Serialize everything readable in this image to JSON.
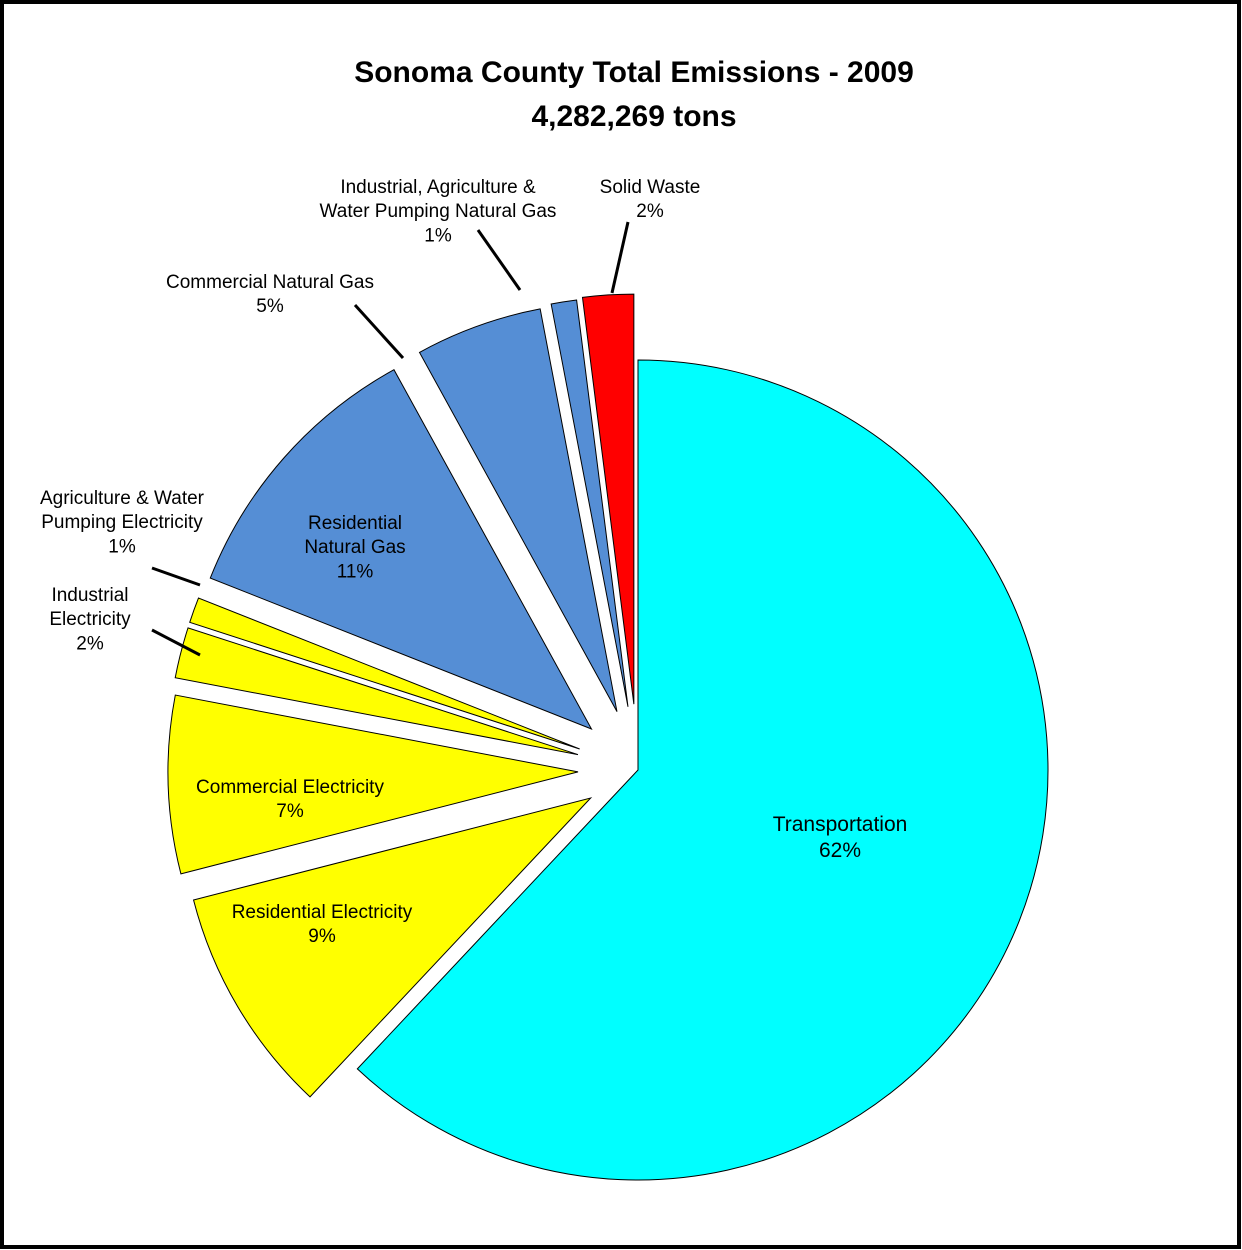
{
  "chart_data": {
    "type": "pie",
    "title": "Sonoma County Total Emissions - 2009",
    "subtitle": "4,282,269 tons",
    "categories": [
      "Transportation",
      "Residential Electricity",
      "Commercial Electricity",
      "Industrial Electricity",
      "Agriculture & Water Pumping Electricity",
      "Residential Natural Gas",
      "Commercial Natural Gas",
      "Industrial, Agriculture & Water Pumping Natural Gas",
      "Solid Waste"
    ],
    "values": [
      62,
      9,
      7,
      2,
      1,
      11,
      5,
      1,
      2
    ],
    "value_labels": [
      "62%",
      "9%",
      "7%",
      "2%",
      "1%",
      "11%",
      "5%",
      "1%",
      "2%"
    ],
    "colors": [
      "#00ffff",
      "#ffff00",
      "#ffff00",
      "#ffff00",
      "#ffff00",
      "#558ed5",
      "#558ed5",
      "#558ed5",
      "#ff0000"
    ]
  }
}
